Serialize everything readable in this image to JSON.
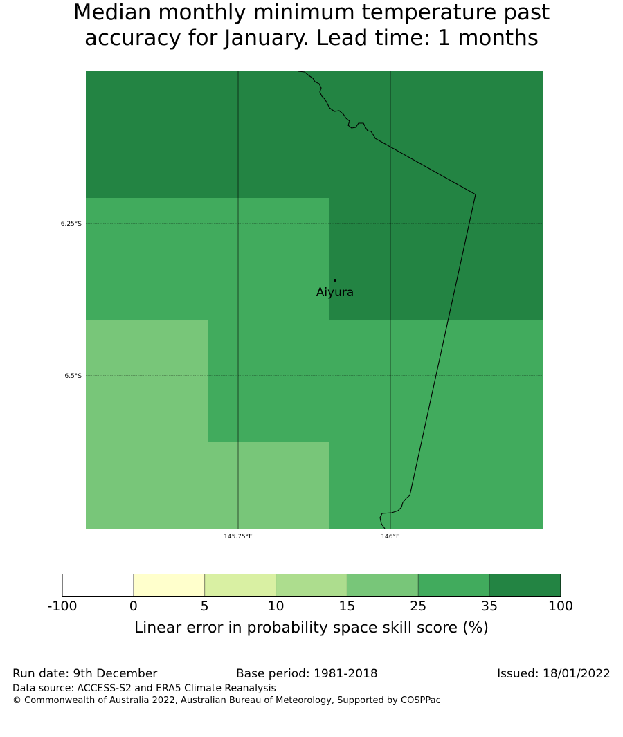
{
  "title_line1": "Median monthly minimum temperature past",
  "title_line2": "accuracy for January. Lead time: 1 months",
  "map": {
    "lat_ticks": [
      "6.25°S",
      "6.5°S"
    ],
    "lon_ticks": [
      "145.75°E",
      "146°E"
    ],
    "place": "Aiyura",
    "colors": {
      "class_25_35": "#41ab5d",
      "class_35_100": "#238443",
      "class_15_25": "#78c679"
    }
  },
  "colorbar": {
    "labels": [
      "-100",
      "0",
      "5",
      "10",
      "15",
      "25",
      "35",
      "100"
    ],
    "colors": [
      "#ffffff",
      "#ffffcc",
      "#d9f0a3",
      "#addd8e",
      "#78c679",
      "#41ab5d",
      "#238443"
    ],
    "title": "Linear error in probability space skill score (%)"
  },
  "footer": {
    "run_date": "Run date: 9th December",
    "base_period": "Base period: 1981-2018",
    "issued": "Issued: 18/01/2022",
    "data_source": "Data source: ACCESS-S2 and ERA5 Climate Reanalysis",
    "copyright": "© Commonwealth of Australia 2022, Australian Bureau of Meteorology, Supported by COSPPac"
  }
}
